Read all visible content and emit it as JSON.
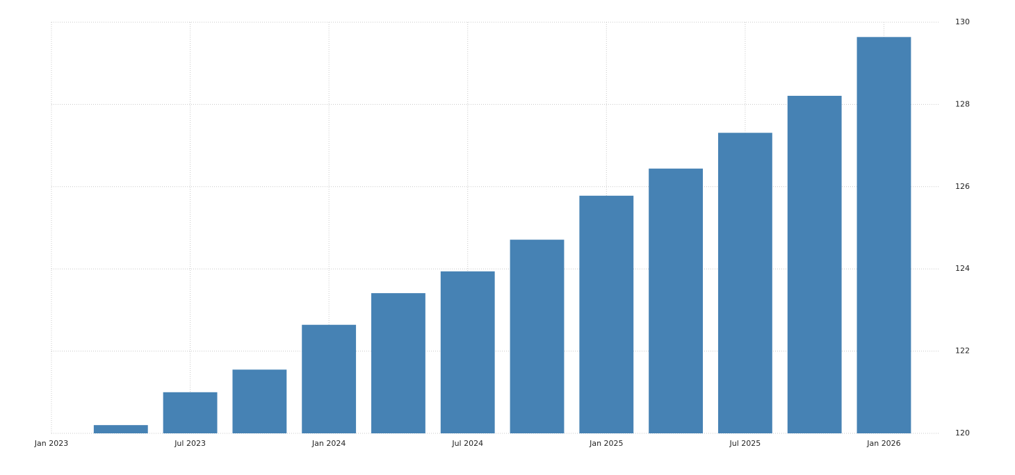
{
  "chart_data": {
    "type": "bar",
    "x": [
      "2023-04",
      "2023-07",
      "2023-10",
      "2024-01",
      "2024-04",
      "2024-07",
      "2024-10",
      "2025-01",
      "2025-04",
      "2025-07",
      "2025-10",
      "2026-01"
    ],
    "values": [
      120.2,
      121.0,
      121.55,
      122.64,
      123.41,
      123.94,
      124.71,
      125.78,
      126.44,
      127.31,
      128.21,
      129.64
    ],
    "color": "#4682b4",
    "xlim": [
      "2023-01",
      "2026-03"
    ],
    "xticks": [
      {
        "value": "2023-01",
        "label": "Jan 2023"
      },
      {
        "value": "2023-07",
        "label": "Jul 2023"
      },
      {
        "value": "2024-01",
        "label": "Jan 2024"
      },
      {
        "value": "2024-07",
        "label": "Jul 2024"
      },
      {
        "value": "2025-01",
        "label": "Jan 2025"
      },
      {
        "value": "2025-07",
        "label": "Jul 2025"
      },
      {
        "value": "2026-01",
        "label": "Jan 2026"
      }
    ],
    "ylim": [
      120,
      130
    ],
    "yticks": [
      120,
      122,
      124,
      126,
      128,
      130
    ],
    "grid": true
  }
}
